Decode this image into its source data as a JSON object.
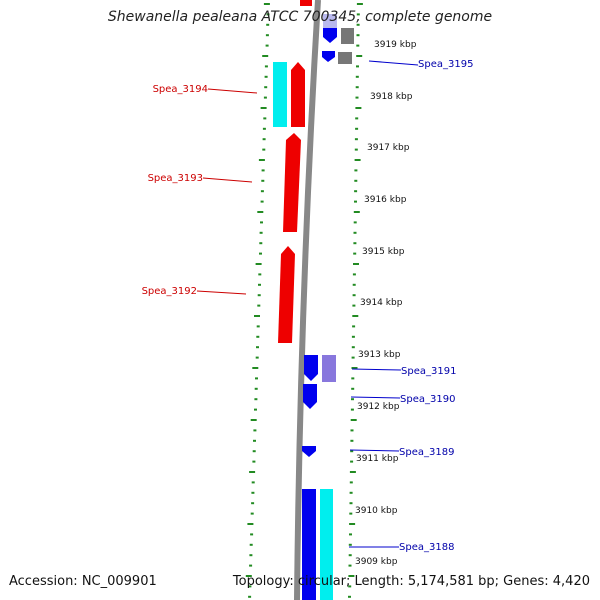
{
  "title": "Shewanella pealeana ATCC 700345, complete genome",
  "footer": {
    "accession": "Accession: NC_009901",
    "topology": "Topology: circular; Length: 5,174,581 bp; Genes: 4,420"
  },
  "colors": {
    "forward_gene": "#0000ee",
    "reverse_gene": "#ee0000",
    "rna": "#00eeee",
    "other_feature": "#8877dd",
    "backbone": "#888888",
    "ticks": "#228b22",
    "forward_label": "#0000aa",
    "reverse_label": "#cc0000"
  },
  "scale_labels": [
    "3919 kbp",
    "3918 kbp",
    "3917 kbp",
    "3916 kbp",
    "3915 kbp",
    "3914 kbp",
    "3913 kbp",
    "3912 kbp",
    "3911 kbp",
    "3910 kbp",
    "3909 kbp"
  ],
  "gene_labels": {
    "forward": [
      "Spea_3195",
      "Spea_3191",
      "Spea_3190",
      "Spea_3189",
      "Spea_3188"
    ],
    "reverse": [
      "Spea_3194",
      "Spea_3193",
      "Spea_3192"
    ]
  }
}
